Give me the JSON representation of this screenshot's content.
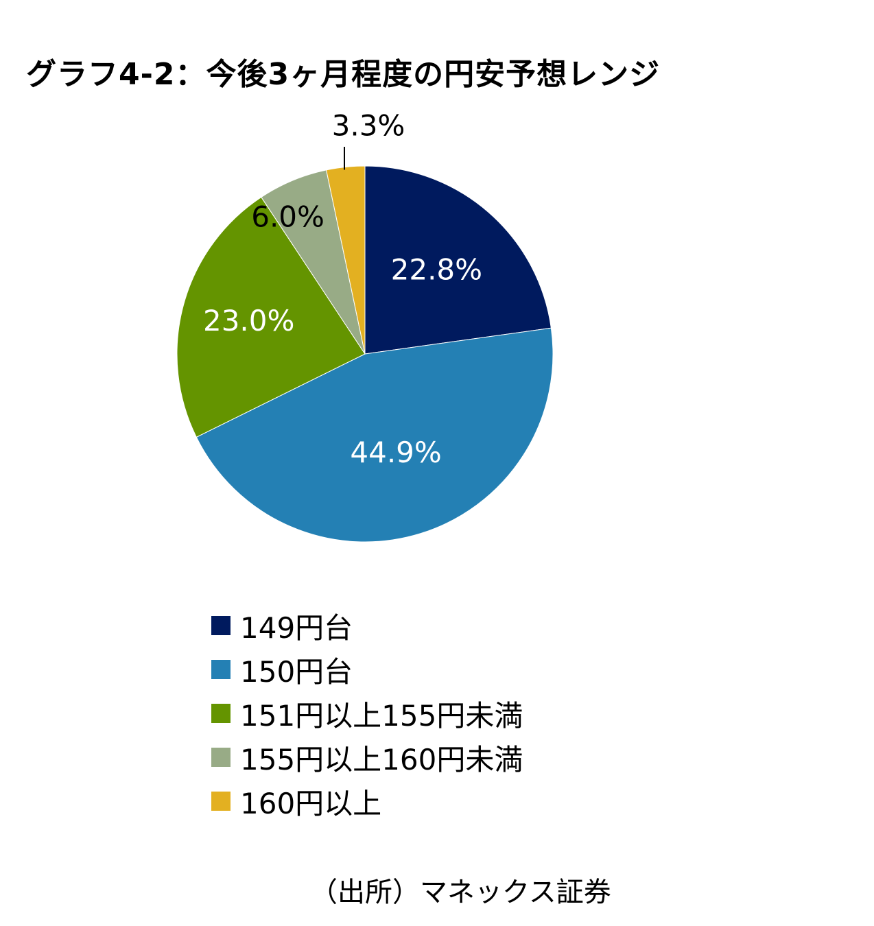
{
  "chart_data": {
    "type": "pie",
    "title": "グラフ4-2：今後3ヶ月程度の円安予想レンジ",
    "slices": [
      {
        "label": "149円台",
        "value": 22.8,
        "value_label": "22.8%",
        "color": "#001a5e"
      },
      {
        "label": "150円台",
        "value": 44.9,
        "value_label": "44.9%",
        "color": "#2480b4"
      },
      {
        "label": "151円以上155円未満",
        "value": 23.0,
        "value_label": "23.0%",
        "color": "#649400"
      },
      {
        "label": "155円以上160円未満",
        "value": 6.0,
        "value_label": "6.0%",
        "color": "#98ab86"
      },
      {
        "label": "160円以上",
        "value": 3.3,
        "value_label": "3.3%",
        "color": "#e3b021"
      }
    ],
    "start_angle": "12 o'clock",
    "direction": "clockwise",
    "legend_position": "bottom"
  },
  "source_note": "（出所）マネックス証券"
}
